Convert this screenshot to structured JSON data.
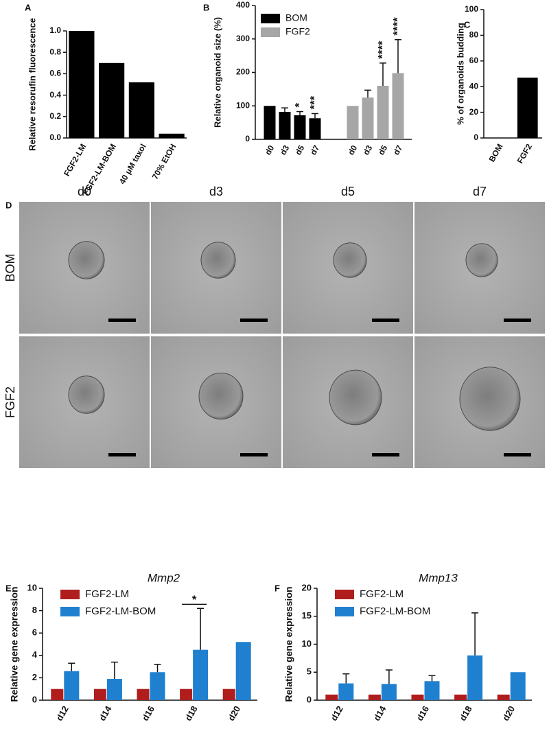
{
  "chart_data": [
    {
      "type": "bar",
      "panel": "A",
      "y_label": "Relative resorufin fluorescence",
      "categories": [
        "FGF2-LM",
        "FGF2-LM-BOM",
        "40 μM taxol",
        "70% EtOH"
      ],
      "values": [
        1.0,
        0.7,
        0.52,
        0.04
      ],
      "color": "#000000",
      "ylim": [
        0,
        1.0
      ],
      "yticks": [
        {
          "value": 0,
          "label": "0.0"
        },
        {
          "value": 0.2,
          "label": "0.2"
        },
        {
          "value": 0.4,
          "label": "0.4"
        },
        {
          "value": 0.6,
          "label": "0.6"
        },
        {
          "value": 0.8,
          "label": "0.8"
        },
        {
          "value": 1.0,
          "label": "1.0"
        }
      ]
    },
    {
      "type": "bar",
      "panel": "B",
      "y_label": "Relative organoid size (%)",
      "categories": [
        "d0",
        "d3",
        "d5",
        "d7"
      ],
      "series": [
        {
          "name": "BOM",
          "color": "#000000",
          "values": [
            100,
            82,
            72,
            63
          ],
          "errors": [
            null,
            12,
            11,
            14
          ],
          "significance": [
            null,
            null,
            "*",
            "***"
          ]
        },
        {
          "name": "FGF2",
          "color": "#a6a6a6",
          "values": [
            100,
            125,
            160,
            198
          ],
          "errors": [
            null,
            22,
            68,
            100
          ],
          "significance": [
            null,
            null,
            "****",
            "****"
          ]
        }
      ],
      "ylim": [
        0,
        400
      ],
      "yticks": [
        0,
        100,
        200,
        300,
        400
      ]
    },
    {
      "type": "bar",
      "panel": "C",
      "y_label": "% of organoids budding",
      "categories": [
        "BOM",
        "FGF2"
      ],
      "values": [
        0,
        47
      ],
      "color": "#000000",
      "ylim": [
        0,
        100
      ],
      "yticks": [
        0,
        20,
        40,
        60,
        80,
        100
      ]
    },
    {
      "type": "bar",
      "panel": "E",
      "title": "Mmp2",
      "y_label": "Relative gene expression",
      "categories": [
        "d12",
        "d14",
        "d16",
        "d18",
        "d20"
      ],
      "series": [
        {
          "name": "FGF2-LM",
          "color": "#b01d1d",
          "values": [
            1,
            1,
            1,
            1,
            1
          ]
        },
        {
          "name": "FGF2-LM-BOM",
          "color": "#1f80d0",
          "values": [
            2.6,
            1.9,
            2.5,
            4.5,
            5.2
          ],
          "errors": [
            0.7,
            1.5,
            0.7,
            3.7,
            null
          ]
        }
      ],
      "significance": [
        null,
        null,
        null,
        "*",
        null
      ],
      "ylim": [
        0,
        10
      ],
      "yticks": [
        0,
        2,
        4,
        6,
        8,
        10
      ]
    },
    {
      "type": "bar",
      "panel": "F",
      "title": "Mmp13",
      "y_label": "Relative gene expression",
      "categories": [
        "d12",
        "d14",
        "d16",
        "d18",
        "d20"
      ],
      "series": [
        {
          "name": "FGF2-LM",
          "color": "#b01d1d",
          "values": [
            1,
            1,
            1,
            1,
            1
          ]
        },
        {
          "name": "FGF2-LM-BOM",
          "color": "#1f80d0",
          "values": [
            3,
            2.9,
            3.4,
            8,
            5
          ],
          "errors": [
            1.7,
            2.5,
            1.0,
            7.6,
            null
          ]
        }
      ],
      "ylim": [
        0,
        20
      ],
      "yticks": [
        0,
        5,
        10,
        15,
        20
      ]
    }
  ],
  "image_grid": {
    "panel": "D",
    "columns": [
      "d0",
      "d3",
      "d5",
      "d7"
    ],
    "rows": [
      "BOM",
      "FGF2"
    ]
  }
}
